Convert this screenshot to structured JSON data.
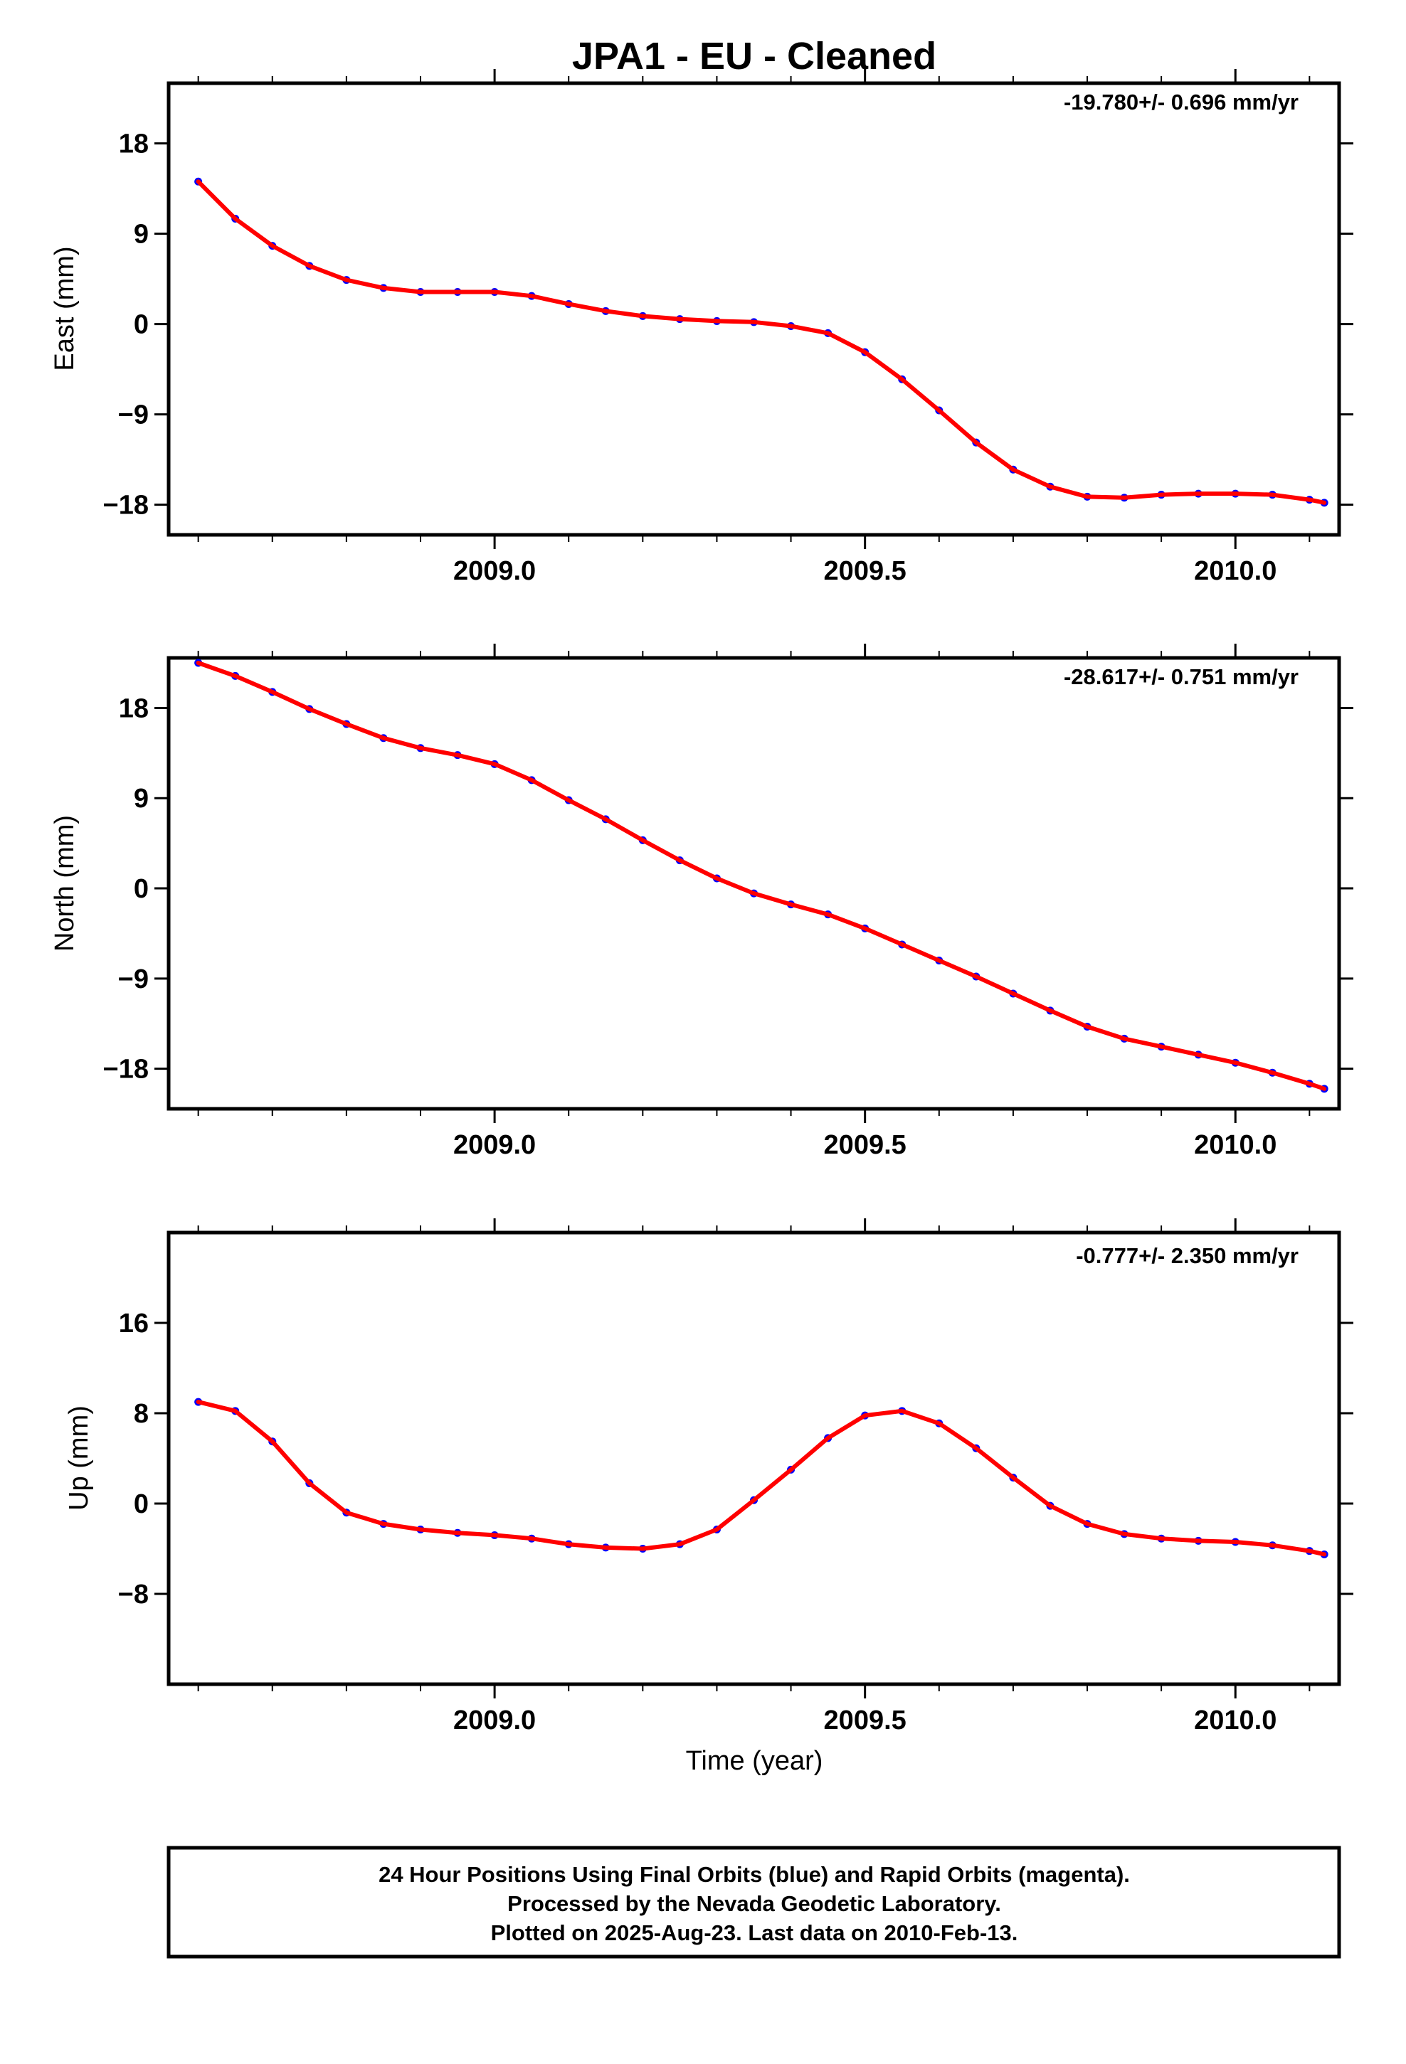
{
  "title": "JPA1  - EU - Cleaned",
  "colors": {
    "points": "#0000ff",
    "fit": "#ff0000",
    "frame": "#000000"
  },
  "x_axis": {
    "range": [
      2008.56,
      2010.14
    ],
    "ticks": [
      2009.0,
      2009.5,
      2010.0
    ],
    "tick_labels": [
      "2009.0",
      "2009.5",
      "2010.0"
    ],
    "minor_step": 0.1,
    "label": "Time (year)"
  },
  "chart_data": [
    {
      "type": "scatter",
      "ylabel": "East (mm)",
      "ylim": [
        -21,
        24
      ],
      "yticks": [
        18,
        9,
        0,
        -9,
        -18
      ],
      "ytick_labels": [
        "18",
        "9",
        "0",
        "−9",
        "−18"
      ],
      "rate_text": "-19.780+/- 0.696 mm/yr",
      "series": [
        {
          "x": [
            2008.6,
            2008.65,
            2008.7,
            2008.75,
            2008.8,
            2008.85,
            2008.9,
            2008.95,
            2009.0,
            2009.05,
            2009.1,
            2009.15,
            2009.2,
            2009.25,
            2009.3,
            2009.35,
            2009.4,
            2009.45,
            2009.5,
            2009.55,
            2009.6,
            2009.65,
            2009.7,
            2009.75,
            2009.8,
            2009.85,
            2009.9,
            2009.95,
            2010.0,
            2010.05,
            2010.1,
            2010.12
          ],
          "y": [
            14.2,
            10.5,
            7.8,
            5.8,
            4.4,
            3.6,
            3.2,
            3.2,
            3.2,
            2.8,
            2.0,
            1.3,
            0.8,
            0.5,
            0.3,
            0.2,
            -0.2,
            -0.9,
            -2.8,
            -5.5,
            -8.6,
            -11.8,
            -14.5,
            -16.2,
            -17.2,
            -17.3,
            -17.0,
            -16.9,
            -16.9,
            -17.0,
            -17.5,
            -17.8
          ]
        }
      ]
    },
    {
      "type": "scatter",
      "ylabel": "North (mm)",
      "ylim": [
        -22,
        23
      ],
      "yticks": [
        18,
        9,
        0,
        -9,
        -18
      ],
      "ytick_labels": [
        "18",
        "9",
        "0",
        "−9",
        "−18"
      ],
      "rate_text": "-28.617+/- 0.751 mm/yr",
      "series": [
        {
          "x": [
            2008.6,
            2008.65,
            2008.7,
            2008.75,
            2008.8,
            2008.85,
            2008.9,
            2008.95,
            2009.0,
            2009.05,
            2009.1,
            2009.15,
            2009.2,
            2009.25,
            2009.3,
            2009.35,
            2009.4,
            2009.45,
            2009.5,
            2009.55,
            2009.6,
            2009.65,
            2009.7,
            2009.75,
            2009.8,
            2009.85,
            2009.9,
            2009.95,
            2010.0,
            2010.05,
            2010.1,
            2010.12
          ],
          "y": [
            22.5,
            21.2,
            19.6,
            17.9,
            16.4,
            15.0,
            14.0,
            13.3,
            12.4,
            10.8,
            8.8,
            6.9,
            4.8,
            2.8,
            1.0,
            -0.5,
            -1.6,
            -2.6,
            -4.0,
            -5.6,
            -7.2,
            -8.8,
            -10.5,
            -12.2,
            -13.8,
            -15.0,
            -15.8,
            -16.6,
            -17.4,
            -18.4,
            -19.5,
            -20.0
          ]
        }
      ]
    },
    {
      "type": "scatter",
      "ylabel": "Up (mm)",
      "ylim": [
        -16,
        24
      ],
      "yticks": [
        16,
        8,
        0,
        -8
      ],
      "ytick_labels": [
        "16",
        "8",
        "0",
        "−8"
      ],
      "rate_text": "-0.777+/- 2.350 mm/yr",
      "series": [
        {
          "x": [
            2008.6,
            2008.65,
            2008.7,
            2008.75,
            2008.8,
            2008.85,
            2008.9,
            2008.95,
            2009.0,
            2009.05,
            2009.1,
            2009.15,
            2009.2,
            2009.25,
            2009.3,
            2009.35,
            2009.4,
            2009.45,
            2009.5,
            2009.55,
            2009.6,
            2009.65,
            2009.7,
            2009.75,
            2009.8,
            2009.85,
            2009.9,
            2009.95,
            2010.0,
            2010.05,
            2010.1,
            2010.12
          ],
          "y": [
            9.0,
            8.2,
            5.5,
            1.8,
            -0.8,
            -1.8,
            -2.3,
            -2.6,
            -2.8,
            -3.1,
            -3.6,
            -3.9,
            -4.0,
            -3.6,
            -2.3,
            0.3,
            3.0,
            5.8,
            7.8,
            8.2,
            7.1,
            4.9,
            2.3,
            -0.2,
            -1.8,
            -2.7,
            -3.1,
            -3.3,
            -3.4,
            -3.7,
            -4.2,
            -4.5
          ]
        }
      ]
    }
  ],
  "footer": {
    "lines": [
      "24 Hour Positions Using Final Orbits (blue) and Rapid Orbits (magenta).",
      "Processed by the Nevada Geodetic Laboratory.",
      "Plotted on 2025-Aug-23. Last data on 2010-Feb-13."
    ]
  }
}
